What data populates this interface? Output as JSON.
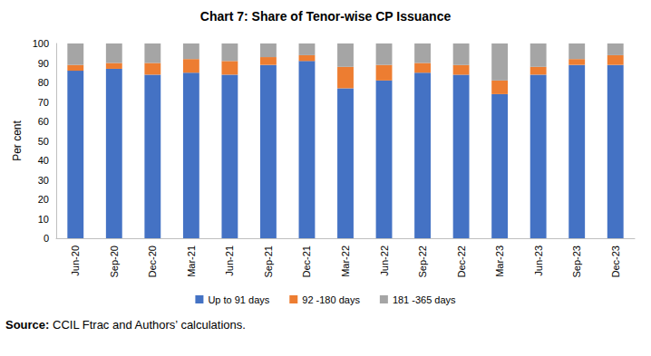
{
  "chart_data": {
    "type": "bar",
    "title": "Chart 7: Share of Tenor-wise CP Issuance",
    "y_label": "Per cent",
    "source": "Source: CCIL Ftrac and Authors’ calculations.",
    "categories": [
      "Jun-20",
      "Sep-20",
      "Dec-20",
      "Mar-21",
      "Jun-21",
      "Sep-21",
      "Dec-21",
      "Mar-22",
      "Jun-22",
      "Sep-22",
      "Dec-22",
      "Mar-23",
      "Jun-23",
      "Sep-23",
      "Dec-23"
    ],
    "series": [
      {
        "name": "Up to 91 days",
        "color": "#4472C4",
        "values": [
          86,
          87,
          84,
          85,
          84,
          89,
          91,
          77,
          81,
          85,
          84,
          74,
          84,
          89,
          89
        ]
      },
      {
        "name": "92 -180 days",
        "color": "#ED7D31",
        "values": [
          3,
          3,
          6,
          7,
          7,
          4,
          3,
          11,
          8,
          5,
          5,
          7,
          4,
          3,
          5
        ]
      },
      {
        "name": "181 -365 days",
        "color": "#A5A5A5",
        "values": [
          11,
          10,
          10,
          8,
          9,
          7,
          6,
          12,
          11,
          10,
          11,
          19,
          12,
          8,
          6
        ]
      }
    ],
    "ylim": [
      0,
      100
    ],
    "yticks": [
      0,
      10,
      20,
      30,
      40,
      50,
      60,
      70,
      80,
      90,
      100
    ],
    "stacked": true,
    "grid": false,
    "legend": "bottom"
  }
}
